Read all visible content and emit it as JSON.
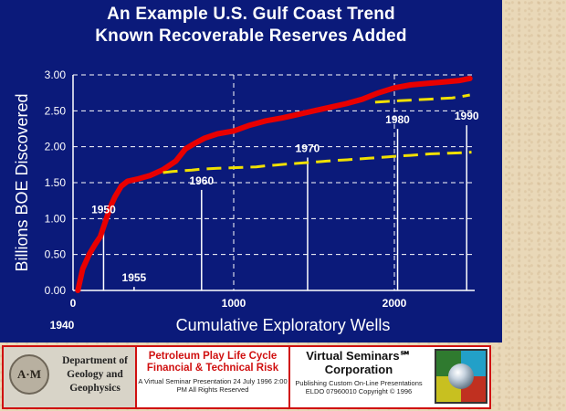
{
  "title": {
    "line1": "An Example U.S. Gulf Coast Trend",
    "line2": "Known Recoverable Reserves Added"
  },
  "colors": {
    "background": "#0b1a7a",
    "curve": "#e80000",
    "projection": "#f0e000",
    "text": "#ffffff",
    "grid": "#ffffff"
  },
  "chart_data": {
    "type": "line",
    "title": "An Example U.S. Gulf Coast Trend Known Recoverable Reserves Added",
    "xlabel": "Cumulative Exploratory Wells",
    "ylabel": "Billions BOE Discovered",
    "xlim": [
      0,
      2500
    ],
    "ylim": [
      0,
      3.0
    ],
    "x_ticks": [
      "0",
      "1000",
      "2000"
    ],
    "x_tick_values": [
      0,
      1000,
      2000
    ],
    "y_ticks": [
      "0.00",
      "0.50",
      "1.00",
      "1.50",
      "2.00",
      "2.50",
      "3.00"
    ],
    "y_tick_values": [
      0,
      0.5,
      1.0,
      1.5,
      2.0,
      2.5,
      3.0
    ],
    "grid": "dashed horizontal",
    "axis_note": "1940",
    "series": [
      {
        "x": [
          30,
          60,
          100,
          140,
          170,
          200,
          230,
          260,
          300,
          340,
          400,
          480,
          560,
          640,
          700,
          760,
          820,
          900,
          1000,
          1100,
          1200,
          1300,
          1400,
          1500,
          1600,
          1700,
          1800,
          1900,
          2000,
          2100,
          2200,
          2300,
          2400,
          2470
        ],
        "y": [
          0.0,
          0.3,
          0.5,
          0.65,
          0.75,
          0.95,
          1.15,
          1.3,
          1.45,
          1.52,
          1.55,
          1.6,
          1.68,
          1.8,
          1.97,
          2.05,
          2.12,
          2.18,
          2.22,
          2.3,
          2.36,
          2.4,
          2.45,
          2.5,
          2.55,
          2.6,
          2.66,
          2.75,
          2.82,
          2.86,
          2.88,
          2.9,
          2.92,
          2.95
        ]
      },
      {
        "x": [
          560,
          620,
          680,
          740,
          800,
          900,
          960,
          1020,
          1080,
          1140,
          1200,
          1260,
          1340,
          1400,
          1460,
          1520,
          1580,
          1640,
          1720,
          1780,
          1840,
          1900,
          1960,
          2020,
          2100,
          2160,
          2220,
          2280,
          2340,
          2400,
          2440,
          2480
        ],
        "y": [
          1.64,
          1.655,
          1.665,
          1.675,
          1.69,
          1.7,
          1.705,
          1.71,
          1.715,
          1.72,
          1.735,
          1.745,
          1.76,
          1.77,
          1.78,
          1.79,
          1.8,
          1.81,
          1.82,
          1.83,
          1.84,
          1.85,
          1.86,
          1.87,
          1.88,
          1.89,
          1.9,
          1.905,
          1.91,
          1.915,
          1.92,
          1.925
        ]
      },
      {
        "x": [
          1880,
          1950,
          2030,
          2120,
          2200,
          2280,
          2360,
          2420,
          2470
        ],
        "y": [
          2.62,
          2.63,
          2.64,
          2.65,
          2.66,
          2.67,
          2.68,
          2.7,
          2.72
        ]
      }
    ],
    "annotations": [
      {
        "label": "1950",
        "x": 190,
        "y": 1.05
      },
      {
        "label": "1955",
        "x": 380,
        "y": 0.1
      },
      {
        "label": "1960",
        "x": 800,
        "y": 1.45
      },
      {
        "label": "1970",
        "x": 1460,
        "y": 1.9
      },
      {
        "label": "1980",
        "x": 2020,
        "y": 2.3
      },
      {
        "label": "1990",
        "x": 2450,
        "y": 2.35
      }
    ]
  },
  "footer": {
    "seal_text": "A·M",
    "dept_text": "Department of Geology and Geophysics",
    "mid_title": "Petroleum Play Life Cycle Financial & Technical Risk",
    "mid_small": "A Virtual Seminar Presentation 24 July 1996 2:00 PM All Rights Reserved",
    "vs_title": "Virtual Seminars℠ Corporation",
    "vs_small": "Publishing Custom On-Line Presentations ELDO 07960010 Copyright © 1996"
  }
}
